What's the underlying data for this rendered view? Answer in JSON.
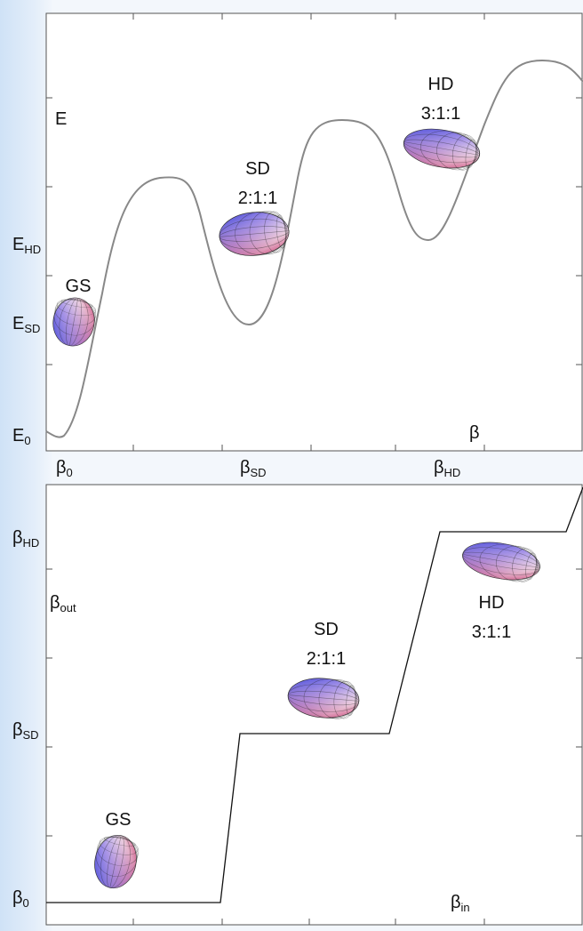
{
  "top_panel": {
    "axis_label": "E",
    "x_axis_label": "β",
    "y_labels": [
      {
        "main": "E",
        "sub": "HD"
      },
      {
        "main": "E",
        "sub": "SD"
      },
      {
        "main": "E",
        "sub": "0"
      }
    ],
    "x_labels": [
      {
        "main": "β",
        "sub": "0"
      },
      {
        "main": "β",
        "sub": "SD"
      },
      {
        "main": "β",
        "sub": "HD"
      }
    ],
    "states": [
      {
        "name": "GS"
      },
      {
        "name": "SD",
        "ratio": "2:1:1"
      },
      {
        "name": "HD",
        "ratio": "3:1:1"
      }
    ]
  },
  "bottom_panel": {
    "y_axis_label": {
      "main": "β",
      "sub": "out"
    },
    "x_axis_label": {
      "main": "β",
      "sub": "in"
    },
    "y_labels": [
      {
        "main": "β",
        "sub": "HD"
      },
      {
        "main": "β",
        "sub": "SD"
      },
      {
        "main": "β",
        "sub": "0"
      }
    ],
    "states": [
      {
        "name": "GS"
      },
      {
        "name": "SD",
        "ratio": "2:1:1"
      },
      {
        "name": "HD",
        "ratio": "3:1:1"
      }
    ]
  }
}
